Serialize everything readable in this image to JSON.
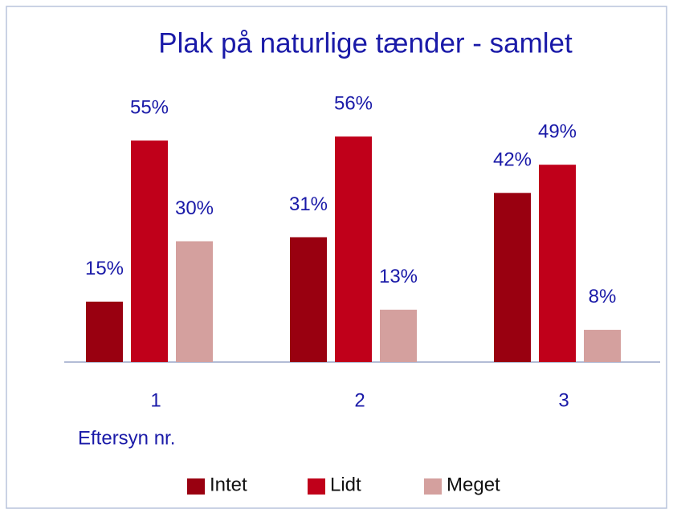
{
  "chart_data": {
    "type": "bar",
    "title": "Plak på naturlige tænder - samlet",
    "x_label": "Eftersyn nr.",
    "categories": [
      "1",
      "2",
      "3"
    ],
    "series": [
      {
        "name": "Intet",
        "color": "#990010",
        "values": [
          15,
          31,
          42
        ],
        "value_labels": [
          "15%",
          "31%",
          "42%"
        ]
      },
      {
        "name": "Lidt",
        "color": "#c0001a",
        "values": [
          55,
          56,
          49
        ],
        "value_labels": [
          "55%",
          "56%",
          "49%"
        ]
      },
      {
        "name": "Meget",
        "color": "#d4a09e",
        "values": [
          30,
          13,
          8
        ],
        "value_labels": [
          "30%",
          "13%",
          "8%"
        ]
      }
    ],
    "ylim": [
      0,
      60
    ],
    "legend": "bottom"
  }
}
